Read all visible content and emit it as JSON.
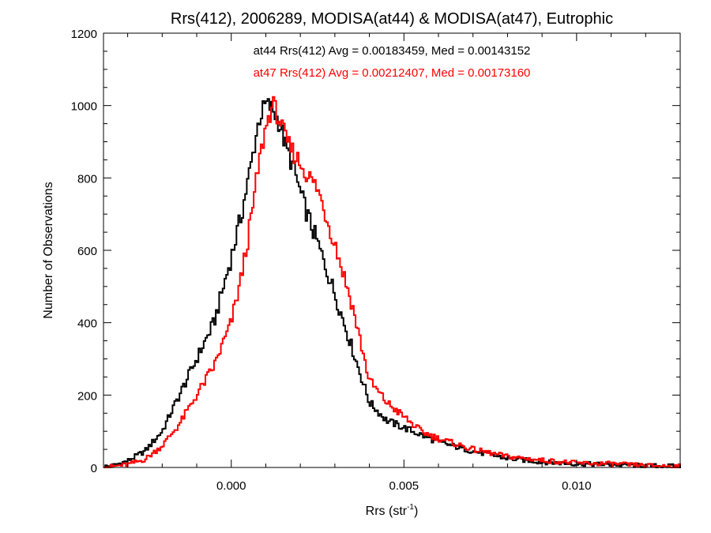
{
  "chart_data": {
    "type": "histogram",
    "title": "Rrs(412), 2006289, MODISA(at44) & MODISA(at47), Eutrophic",
    "xlabel_main": "Rrs (str",
    "xlabel_sup": "-1",
    "xlabel_close": ")",
    "ylabel": "Number of Observations",
    "xlim": [
      -0.0037,
      0.013
    ],
    "ylim": [
      0,
      1200
    ],
    "xticks": [
      0.0,
      0.005,
      0.01
    ],
    "xtick_labels": [
      "0.000",
      "0.005",
      "0.010"
    ],
    "yticks": [
      0,
      200,
      400,
      600,
      800,
      1000,
      1200
    ],
    "ytick_labels": [
      "0",
      "200",
      "400",
      "600",
      "800",
      "1000",
      "1200"
    ],
    "grid": false,
    "annotations": [
      {
        "text": "at44 Rrs(412) Avg = 0.00183459, Med = 0.00143152",
        "color": "#000000"
      },
      {
        "text": "at47 Rrs(412) Avg = 0.00212407, Med = 0.00173160",
        "color": "#ff0000"
      }
    ],
    "series": [
      {
        "color": "#000000",
        "points": [
          [
            -0.0035,
            3
          ],
          [
            -0.003,
            18
          ],
          [
            -0.0025,
            45
          ],
          [
            -0.002,
            100
          ],
          [
            -0.0015,
            200
          ],
          [
            -0.001,
            300
          ],
          [
            -0.0005,
            400
          ],
          [
            0.0,
            580
          ],
          [
            0.0003,
            700
          ],
          [
            0.0006,
            850
          ],
          [
            0.0008,
            960
          ],
          [
            0.001,
            1005
          ],
          [
            0.0012,
            990
          ],
          [
            0.0014,
            950
          ],
          [
            0.0016,
            880
          ],
          [
            0.0018,
            830
          ],
          [
            0.002,
            760
          ],
          [
            0.0022,
            700
          ],
          [
            0.0025,
            620
          ],
          [
            0.003,
            480
          ],
          [
            0.0035,
            330
          ],
          [
            0.004,
            180
          ],
          [
            0.0045,
            130
          ],
          [
            0.005,
            110
          ],
          [
            0.0055,
            90
          ],
          [
            0.006,
            70
          ],
          [
            0.007,
            45
          ],
          [
            0.008,
            25
          ],
          [
            0.009,
            15
          ],
          [
            0.01,
            10
          ],
          [
            0.011,
            8
          ],
          [
            0.012,
            5
          ],
          [
            0.013,
            3
          ]
        ]
      },
      {
        "color": "#ff0000",
        "points": [
          [
            -0.0035,
            2
          ],
          [
            -0.003,
            8
          ],
          [
            -0.0025,
            22
          ],
          [
            -0.002,
            60
          ],
          [
            -0.0015,
            120
          ],
          [
            -0.001,
            200
          ],
          [
            -0.0005,
            280
          ],
          [
            0.0,
            400
          ],
          [
            0.0003,
            530
          ],
          [
            0.0006,
            700
          ],
          [
            0.0008,
            840
          ],
          [
            0.001,
            940
          ],
          [
            0.0012,
            1005
          ],
          [
            0.0014,
            960
          ],
          [
            0.0016,
            900
          ],
          [
            0.0018,
            870
          ],
          [
            0.002,
            840
          ],
          [
            0.0022,
            810
          ],
          [
            0.0025,
            770
          ],
          [
            0.003,
            620
          ],
          [
            0.0035,
            450
          ],
          [
            0.004,
            240
          ],
          [
            0.0045,
            180
          ],
          [
            0.005,
            140
          ],
          [
            0.0055,
            100
          ],
          [
            0.006,
            80
          ],
          [
            0.007,
            50
          ],
          [
            0.008,
            30
          ],
          [
            0.009,
            20
          ],
          [
            0.01,
            12
          ],
          [
            0.011,
            10
          ],
          [
            0.012,
            5
          ],
          [
            0.013,
            3
          ]
        ]
      }
    ]
  }
}
